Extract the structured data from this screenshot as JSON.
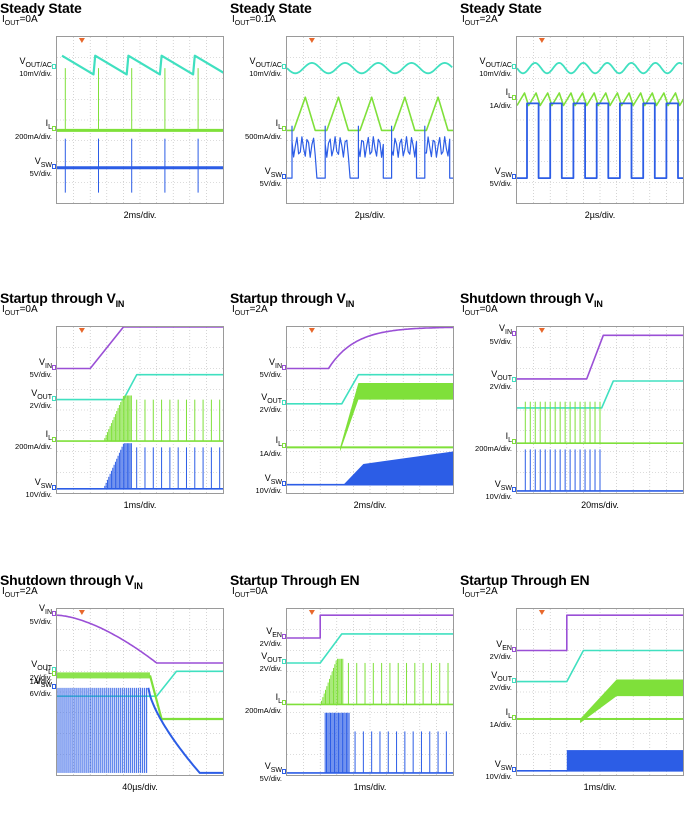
{
  "colors": {
    "vout": "#40e0c0",
    "il": "#7fe03a",
    "vsw": "#2c5de6",
    "vin": "#9a4fd6",
    "ven": "#9a4fd6",
    "trigger": "#e8682c",
    "grid": "#b8b8b8"
  },
  "chart_data": [
    {
      "type": "line",
      "title": "Steady State",
      "condition": "0A",
      "timebase": "2ms/div.",
      "traces": [
        {
          "signal": "VOUT/AC",
          "name": "V",
          "sub": "OUT/AC",
          "scale": "10mV/div.",
          "color": "vout",
          "shape": "sawtooth_pulse",
          "level": 1.5
        },
        {
          "signal": "IL",
          "name": "I",
          "sub": "L",
          "scale": "200mA/div.",
          "color": "il",
          "shape": "spike_burst",
          "level": 4.5
        },
        {
          "signal": "VSW",
          "name": "V",
          "sub": "SW",
          "scale": "5V/div.",
          "color": "vsw",
          "shape": "spike_burst_flat",
          "level": 6.3
        }
      ]
    },
    {
      "type": "line",
      "title": "Steady State",
      "condition": "0.1A",
      "timebase": "2µs/div.",
      "traces": [
        {
          "signal": "VOUT/AC",
          "name": "V",
          "sub": "OUT/AC",
          "scale": "10mV/div.",
          "color": "vout",
          "shape": "ripple",
          "level": 1.5
        },
        {
          "signal": "IL",
          "name": "I",
          "sub": "L",
          "scale": "500mA/div.",
          "color": "il",
          "shape": "triangle_dcm",
          "level": 4.5
        },
        {
          "signal": "VSW",
          "name": "V",
          "sub": "SW",
          "scale": "5V/div.",
          "color": "vsw",
          "shape": "switch_ring",
          "level": 6.8
        }
      ]
    },
    {
      "type": "line",
      "title": "Steady State",
      "condition": "2A",
      "timebase": "2µs/div.",
      "traces": [
        {
          "signal": "VOUT/AC",
          "name": "V",
          "sub": "OUT/AC",
          "scale": "10mV/div.",
          "color": "vout",
          "shape": "ripple_fast",
          "level": 1.5
        },
        {
          "signal": "IL",
          "name": "I",
          "sub": "L",
          "scale": "1A/div.",
          "color": "il",
          "shape": "triangle_ccm",
          "level": 3.0
        },
        {
          "signal": "VSW",
          "name": "V",
          "sub": "SW",
          "scale": "5V/div.",
          "color": "vsw",
          "shape": "square",
          "level": 6.8
        }
      ]
    },
    {
      "type": "line",
      "title": "Startup through V",
      "title_sub": "IN",
      "condition": "0A",
      "timebase": "1ms/div.",
      "traces": [
        {
          "signal": "VIN",
          "name": "V",
          "sub": "IN",
          "scale": "5V/div.",
          "color": "vin",
          "shape": "ramp_up",
          "level": 2.0,
          "t0": 2.0,
          "t1": 4.0,
          "high": 0.0
        },
        {
          "signal": "VOUT",
          "name": "V",
          "sub": "OUT",
          "scale": "2V/div.",
          "color": "vout",
          "shape": "ramp_up",
          "level": 3.5,
          "t0": 4.0,
          "t1": 4.8,
          "high": 2.3
        },
        {
          "signal": "IL",
          "name": "I",
          "sub": "L",
          "scale": "200mA/div.",
          "color": "il",
          "shape": "burst_then_pulses",
          "level": 5.5,
          "t0": 2.8,
          "t1": 4.5
        },
        {
          "signal": "VSW",
          "name": "V",
          "sub": "SW",
          "scale": "10V/div.",
          "color": "vsw",
          "shape": "burst_then_pulses",
          "level": 7.8,
          "t0": 2.8,
          "t1": 4.5
        }
      ]
    },
    {
      "type": "line",
      "title": "Startup through V",
      "title_sub": "IN",
      "condition": "2A",
      "timebase": "2ms/div.",
      "traces": [
        {
          "signal": "VIN",
          "name": "V",
          "sub": "IN",
          "scale": "5V/div.",
          "color": "vin",
          "shape": "rc_up",
          "level": 2.0,
          "t0": 2.5,
          "t1": 9.8,
          "high": 0.0
        },
        {
          "signal": "VOUT",
          "name": "V",
          "sub": "OUT",
          "scale": "2V/div.",
          "color": "vout",
          "shape": "ramp_up",
          "level": 3.7,
          "t0": 3.3,
          "t1": 4.3,
          "high": 2.3
        },
        {
          "signal": "IL",
          "name": "I",
          "sub": "L",
          "scale": "1A/div.",
          "color": "il",
          "shape": "ramp_band",
          "level": 5.8,
          "t0": 3.2,
          "t1": 4.3,
          "high": 3.1
        },
        {
          "signal": "VSW",
          "name": "V",
          "sub": "SW",
          "scale": "10V/div.",
          "color": "vsw",
          "shape": "grow_block",
          "level": 7.6,
          "t0": 3.4,
          "t1": 10.0
        }
      ]
    },
    {
      "type": "line",
      "title": "Shutdown through V",
      "title_sub": "IN",
      "condition": "0A",
      "timebase": "20ms/div.",
      "traces": [
        {
          "signal": "VIN",
          "name": "V",
          "sub": "IN",
          "scale": "5V/div.",
          "color": "vin",
          "shape": "ramp_down",
          "level": 0.4,
          "t0": 4.2,
          "t1": 5.2,
          "high": 2.5
        },
        {
          "signal": "VOUT",
          "name": "V",
          "sub": "OUT",
          "scale": "2V/div.",
          "color": "vout",
          "shape": "ramp_down",
          "level": 2.6,
          "t0": 5.1,
          "t1": 5.8,
          "high": 3.9
        },
        {
          "signal": "IL",
          "name": "I",
          "sub": "L",
          "scale": "200mA/div.",
          "color": "il",
          "shape": "pulses_stop",
          "level": 5.6,
          "t0": 0.5,
          "t1": 5.0
        },
        {
          "signal": "VSW",
          "name": "V",
          "sub": "SW",
          "scale": "10V/div.",
          "color": "vsw",
          "shape": "pulses_stop",
          "level": 7.9,
          "t0": 0.5,
          "t1": 5.0
        }
      ]
    },
    {
      "type": "line",
      "title": "Shutdown through V",
      "title_sub": "IN",
      "condition": "2A",
      "timebase": "40µs/div.",
      "traces": [
        {
          "signal": "VIN",
          "name": "V",
          "sub": "IN",
          "scale": "5V/div.",
          "color": "vin",
          "shape": "curve_down",
          "level": 0.3,
          "t0": 0.0,
          "t1": 6.0,
          "high": 2.6
        },
        {
          "signal": "VOUT",
          "name": "V",
          "sub": "OUT",
          "scale": "2V/div.",
          "color": "vout",
          "shape": "ramp_down",
          "level": 3.0,
          "t0": 6.0,
          "t1": 7.2,
          "high": 4.2
        },
        {
          "signal": "IL",
          "name": "I",
          "sub": "L",
          "scale": "1A/div.",
          "color": "il",
          "shape": "band_drop",
          "level": 3.2,
          "t0": 5.6,
          "t1": 6.3,
          "high": 5.3
        },
        {
          "signal": "VSW",
          "name": "V",
          "sub": "SW",
          "scale": "6V/div.",
          "color": "vsw",
          "shape": "block_decay",
          "level": 3.8,
          "t0": 5.5,
          "t1": 8.6,
          "high": 7.9
        }
      ]
    },
    {
      "type": "line",
      "title": "Startup Through EN",
      "condition": "0A",
      "timebase": "1ms/div.",
      "traces": [
        {
          "signal": "VEN",
          "name": "V",
          "sub": "EN",
          "scale": "2V/div.",
          "color": "ven",
          "shape": "step_up",
          "level": 1.4,
          "t0": 2.0,
          "t1": 2.0,
          "high": 0.3
        },
        {
          "signal": "VOUT",
          "name": "V",
          "sub": "OUT",
          "scale": "2V/div.",
          "color": "vout",
          "shape": "ramp_up",
          "level": 2.6,
          "t0": 2.0,
          "t1": 3.3,
          "high": 1.2
        },
        {
          "signal": "IL",
          "name": "I",
          "sub": "L",
          "scale": "200mA/div.",
          "color": "il",
          "shape": "burst_then_pulses",
          "level": 4.6,
          "t0": 2.0,
          "t1": 3.4
        },
        {
          "signal": "VSW",
          "name": "V",
          "sub": "SW",
          "scale": "5V/div.",
          "color": "vsw",
          "shape": "block_then_pulses",
          "level": 7.9,
          "t0": 2.3,
          "t1": 3.8,
          "high": 5.0
        }
      ]
    },
    {
      "type": "line",
      "title": "Startup Through EN",
      "condition": "2A",
      "timebase": "1ms/div.",
      "traces": [
        {
          "signal": "VEN",
          "name": "V",
          "sub": "EN",
          "scale": "2V/div.",
          "color": "ven",
          "shape": "step_up",
          "level": 2.0,
          "t0": 3.0,
          "t1": 3.0,
          "high": 0.3
        },
        {
          "signal": "VOUT",
          "name": "V",
          "sub": "OUT",
          "scale": "2V/div.",
          "color": "vout",
          "shape": "ramp_up",
          "level": 3.5,
          "t0": 3.0,
          "t1": 4.0,
          "high": 2.0
        },
        {
          "signal": "IL",
          "name": "I",
          "sub": "L",
          "scale": "1A/div.",
          "color": "il",
          "shape": "ramp_band",
          "level": 5.3,
          "t0": 3.8,
          "t1": 6.0,
          "high": 3.8
        },
        {
          "signal": "VSW",
          "name": "V",
          "sub": "SW",
          "scale": "10V/div.",
          "color": "vsw",
          "shape": "block",
          "level": 7.8,
          "t0": 3.0,
          "t1": 10.0,
          "high": 6.8
        }
      ]
    }
  ]
}
